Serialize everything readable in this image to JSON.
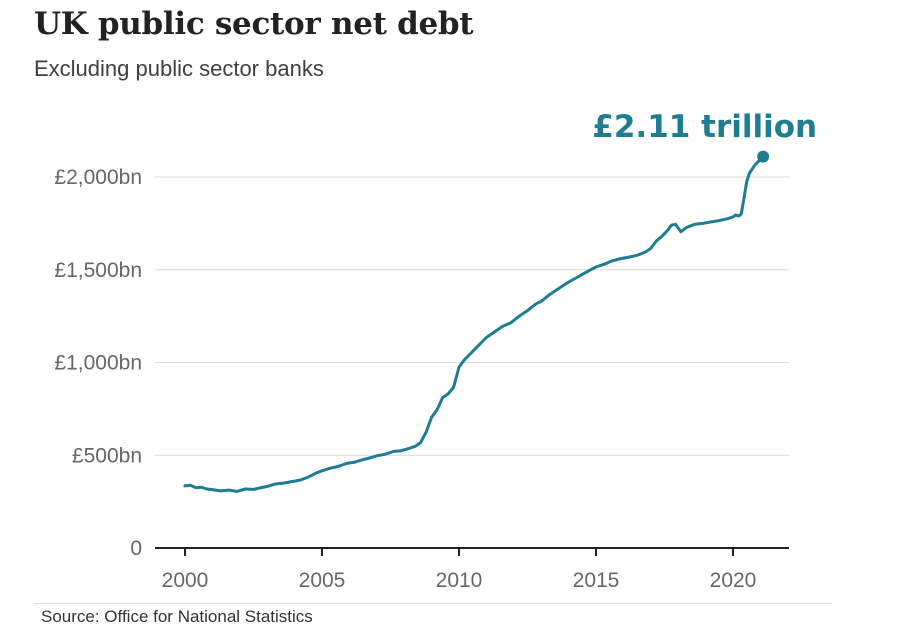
{
  "title": "UK public sector net debt",
  "subtitle": "Excluding public sector banks",
  "source": "Source: Office for National Statistics",
  "colors": {
    "line": "#1e7c93",
    "title": "#222222",
    "grid": "#d9d9d9",
    "axis": "#222222",
    "tick_label": "#666666"
  },
  "chart_data": {
    "type": "line",
    "title": "UK public sector net debt",
    "subtitle": "Excluding public sector banks",
    "xlabel": "",
    "ylabel": "",
    "xlim": [
      2000,
      2022
    ],
    "ylim": [
      0,
      2000
    ],
    "grid": true,
    "x_ticks": [
      2000,
      2005,
      2010,
      2015,
      2020
    ],
    "x_tick_labels": [
      "2000",
      "2005",
      "2010",
      "2015",
      "2020"
    ],
    "y_ticks": [
      0,
      500,
      1000,
      1500,
      2000
    ],
    "y_tick_labels": [
      "0",
      "£500bn",
      "£1,000bn",
      "£1,500bn",
      "£2,000bn"
    ],
    "annotation": {
      "text": "£2.11 trillion",
      "x": 2021.1,
      "y": 2110
    },
    "series": [
      {
        "x": [
          2000.0,
          2000.2,
          2000.4,
          2000.6,
          2000.8,
          2001.0,
          2001.3,
          2001.6,
          2001.9,
          2002.2,
          2002.5,
          2002.8,
          2003.0,
          2003.3,
          2003.6,
          2003.9,
          2004.2,
          2004.5,
          2004.8,
          2005.0,
          2005.3,
          2005.6,
          2005.9,
          2006.2,
          2006.5,
          2006.8,
          2007.0,
          2007.3,
          2007.6,
          2007.9,
          2008.2,
          2008.4,
          2008.6,
          2008.8,
          2009.0,
          2009.2,
          2009.4,
          2009.6,
          2009.8,
          2010.0,
          2010.2,
          2010.4,
          2010.6,
          2010.8,
          2011.0,
          2011.3,
          2011.6,
          2011.9,
          2012.2,
          2012.5,
          2012.8,
          2013.0,
          2013.3,
          2013.6,
          2013.9,
          2014.2,
          2014.5,
          2014.8,
          2015.0,
          2015.3,
          2015.6,
          2015.9,
          2016.2,
          2016.5,
          2016.8,
          2017.0,
          2017.2,
          2017.4,
          2017.6,
          2017.75,
          2017.9,
          2018.1,
          2018.3,
          2018.6,
          2018.9,
          2019.2,
          2019.5,
          2019.8,
          2020.0,
          2020.1,
          2020.2,
          2020.3,
          2020.4,
          2020.5,
          2020.6,
          2020.8,
          2021.0,
          2021.1
        ],
        "values": [
          335,
          338,
          325,
          328,
          318,
          315,
          308,
          312,
          305,
          318,
          316,
          326,
          332,
          345,
          350,
          358,
          366,
          382,
          405,
          416,
          430,
          440,
          456,
          463,
          476,
          488,
          497,
          505,
          520,
          525,
          538,
          548,
          568,
          625,
          705,
          745,
          810,
          830,
          865,
          975,
          1015,
          1045,
          1075,
          1105,
          1135,
          1165,
          1195,
          1215,
          1250,
          1280,
          1315,
          1330,
          1365,
          1395,
          1425,
          1450,
          1475,
          1500,
          1515,
          1530,
          1548,
          1560,
          1568,
          1578,
          1595,
          1615,
          1655,
          1680,
          1710,
          1740,
          1745,
          1705,
          1728,
          1745,
          1750,
          1758,
          1765,
          1775,
          1785,
          1795,
          1790,
          1800,
          1885,
          1975,
          2020,
          2065,
          2095,
          2110
        ]
      }
    ]
  }
}
